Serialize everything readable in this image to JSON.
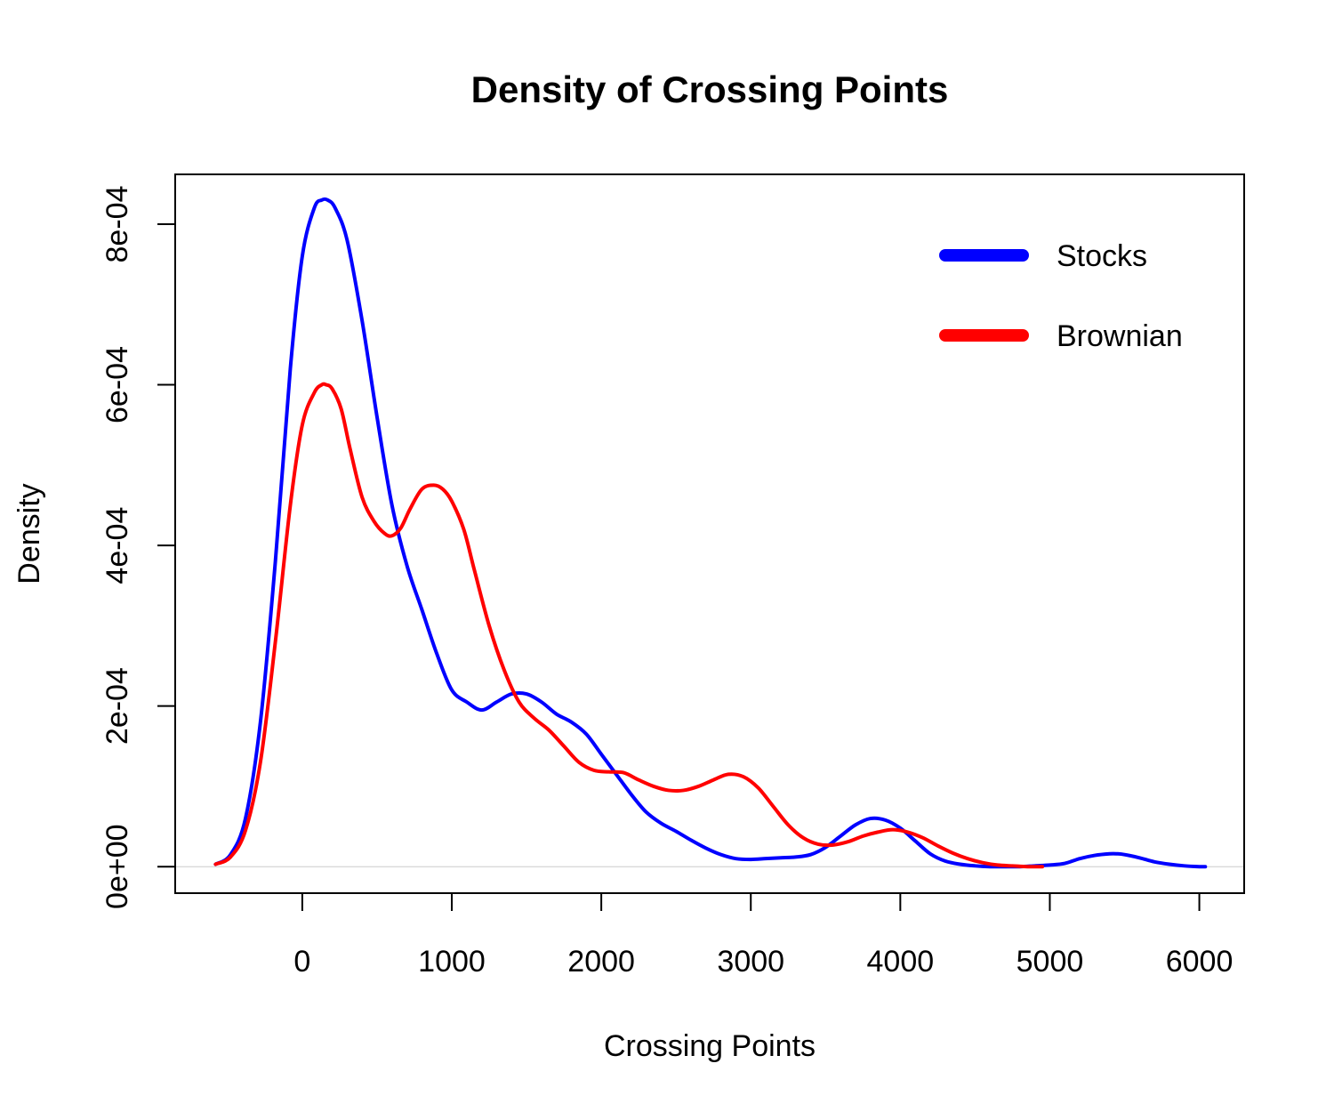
{
  "chart_data": {
    "type": "line",
    "title": "Density of Crossing Points",
    "xlabel": "Crossing Points",
    "ylabel": "Density",
    "xlim": [
      -850,
      6300
    ],
    "ylim": [
      -3.3e-05,
      0.000862
    ],
    "xticks": [
      0,
      1000,
      2000,
      3000,
      4000,
      5000,
      6000
    ],
    "xtick_labels": [
      "0",
      "1000",
      "2000",
      "3000",
      "4000",
      "5000",
      "6000"
    ],
    "yticks": [
      0,
      0.0002,
      0.0004,
      0.0006,
      0.0008
    ],
    "ytick_labels": [
      "0e+00",
      "2e-04",
      "4e-04",
      "6e-04",
      "8e-04"
    ],
    "grid": false,
    "zero_line": true,
    "legend_position": "top-right",
    "legend": [
      {
        "label": "Stocks",
        "color": "#0000ff"
      },
      {
        "label": "Brownian",
        "color": "#ff0000"
      }
    ],
    "series": [
      {
        "name": "Stocks",
        "color": "#0000ff",
        "x": [
          -580,
          -480,
          -380,
          -280,
          -180,
          -80,
          0,
          80,
          130,
          170,
          220,
          300,
          400,
          500,
          600,
          700,
          800,
          900,
          1000,
          1100,
          1200,
          1300,
          1400,
          1500,
          1600,
          1700,
          1800,
          1900,
          2000,
          2100,
          2200,
          2300,
          2400,
          2500,
          2600,
          2700,
          2800,
          2900,
          3000,
          3100,
          3200,
          3300,
          3400,
          3500,
          3600,
          3700,
          3800,
          3900,
          4000,
          4100,
          4200,
          4300,
          4400,
          4500,
          4600,
          4700,
          4800,
          4900,
          5000,
          5100,
          5200,
          5300,
          5400,
          5450,
          5500,
          5600,
          5700,
          5800,
          5900,
          6000,
          6040
        ],
        "y": [
          3e-06,
          1.5e-05,
          6e-05,
          0.00018,
          0.00038,
          0.00062,
          0.00076,
          0.00082,
          0.00083,
          0.00083,
          0.00082,
          0.00078,
          0.00068,
          0.00056,
          0.00045,
          0.000375,
          0.00032,
          0.000265,
          0.00022,
          0.000205,
          0.000195,
          0.000205,
          0.000215,
          0.000215,
          0.000205,
          0.00019,
          0.00018,
          0.000165,
          0.00014,
          0.000115,
          9e-05,
          6.8e-05,
          5.4e-05,
          4.4e-05,
          3.3e-05,
          2.3e-05,
          1.5e-05,
          1e-05,
          9e-06,
          1e-05,
          1.1e-05,
          1.2e-05,
          1.5e-05,
          2.4e-05,
          3.8e-05,
          5.2e-05,
          6e-05,
          5.8e-05,
          4.8e-05,
          3.2e-05,
          1.6e-05,
          7e-06,
          3e-06,
          1e-06,
          0.0,
          0.0,
          0.0,
          1e-06,
          2e-06,
          4e-06,
          1e-05,
          1.4e-05,
          1.6e-05,
          1.6e-05,
          1.5e-05,
          1.1e-05,
          6e-06,
          3e-06,
          1e-06,
          0.0,
          0.0
        ]
      },
      {
        "name": "Brownian",
        "color": "#ff0000",
        "x": [
          -580,
          -480,
          -380,
          -280,
          -180,
          -80,
          0,
          80,
          130,
          160,
          200,
          260,
          320,
          400,
          480,
          550,
          600,
          660,
          720,
          800,
          880,
          940,
          1000,
          1080,
          1150,
          1250,
          1350,
          1450,
          1550,
          1650,
          1750,
          1850,
          1950,
          2050,
          2150,
          2250,
          2350,
          2450,
          2550,
          2650,
          2750,
          2850,
          2950,
          3050,
          3150,
          3250,
          3350,
          3450,
          3550,
          3650,
          3750,
          3850,
          3950,
          4050,
          4150,
          4250,
          4350,
          4450,
          4550,
          4650,
          4750,
          4850,
          4950
        ],
        "y": [
          3e-06,
          1.2e-05,
          4.5e-05,
          0.00013,
          0.00028,
          0.00045,
          0.00055,
          0.00059,
          0.0006,
          0.0006,
          0.000595,
          0.00057,
          0.00052,
          0.00046,
          0.00043,
          0.000415,
          0.000412,
          0.000422,
          0.000445,
          0.00047,
          0.000475,
          0.00047,
          0.000455,
          0.00042,
          0.00037,
          0.0003,
          0.000245,
          0.000205,
          0.000185,
          0.00017,
          0.00015,
          0.00013,
          0.00012,
          0.000118,
          0.000117,
          0.000108,
          0.0001,
          9.5e-05,
          9.5e-05,
          0.0001,
          0.000108,
          0.000115,
          0.000112,
          9.8e-05,
          7.5e-05,
          5.2e-05,
          3.6e-05,
          2.8e-05,
          2.7e-05,
          3.1e-05,
          3.8e-05,
          4.3e-05,
          4.6e-05,
          4.3e-05,
          3.6e-05,
          2.6e-05,
          1.7e-05,
          1e-05,
          5e-06,
          2e-06,
          1e-06,
          0.0,
          0.0
        ]
      }
    ]
  }
}
